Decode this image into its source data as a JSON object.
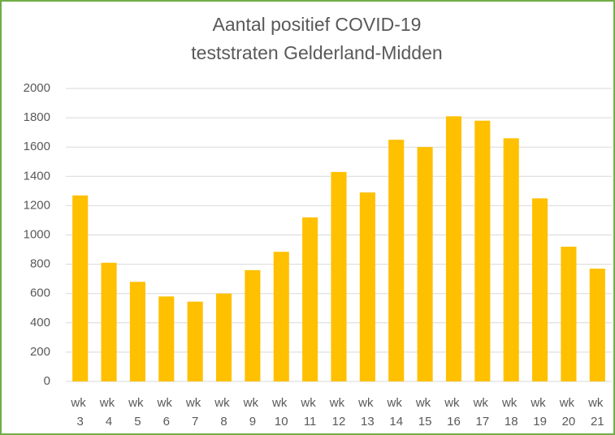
{
  "chart_data": {
    "type": "bar",
    "title": [
      "Aantal positief COVID-19",
      "teststraten Gelderland-Midden"
    ],
    "categories": [
      "wk 3",
      "wk 4",
      "wk 5",
      "wk 6",
      "wk 7",
      "wk 8",
      "wk 9",
      "wk 10",
      "wk 11",
      "wk 12",
      "wk 13",
      "wk 14",
      "wk 15",
      "wk 16",
      "wk 17",
      "wk 18",
      "wk 19",
      "wk 20",
      "wk 21"
    ],
    "values": [
      1270,
      810,
      680,
      580,
      545,
      600,
      760,
      885,
      1120,
      1430,
      1290,
      1650,
      1600,
      1810,
      1780,
      1660,
      1250,
      920,
      770
    ],
    "color": "#ffc000",
    "ylim": [
      0,
      2000
    ],
    "yticks": [
      0,
      200,
      400,
      600,
      800,
      1000,
      1200,
      1400,
      1600,
      1800,
      2000
    ],
    "grid": true
  }
}
